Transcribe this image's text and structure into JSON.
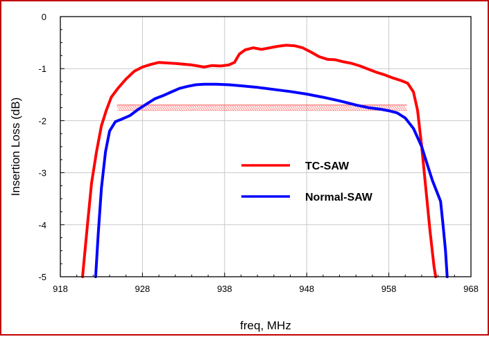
{
  "chart_data": {
    "type": "line",
    "title": "",
    "xlabel": "freq, MHz",
    "ylabel": "Insertion Loss (dB)",
    "xlim": [
      918,
      968
    ],
    "ylim": [
      -5,
      0
    ],
    "x_ticks": [
      "918",
      "928",
      "938",
      "948",
      "958",
      "968"
    ],
    "y_ticks": [
      "0",
      "-1",
      "-2",
      "-3",
      "-4",
      "-5"
    ],
    "grid": true,
    "legend_position": "center-right",
    "frame_color": "#c00000",
    "series": [
      {
        "name": "TC-SAW",
        "color": "#ff0000",
        "points": [
          [
            920.7,
            -5.0
          ],
          [
            921.3,
            -4.0
          ],
          [
            921.8,
            -3.2
          ],
          [
            922.4,
            -2.6
          ],
          [
            923.0,
            -2.1
          ],
          [
            923.6,
            -1.8
          ],
          [
            924.2,
            -1.55
          ],
          [
            925.0,
            -1.38
          ],
          [
            926.0,
            -1.2
          ],
          [
            927.0,
            -1.05
          ],
          [
            928.0,
            -0.97
          ],
          [
            929.0,
            -0.92
          ],
          [
            930.0,
            -0.88
          ],
          [
            932.0,
            -0.9
          ],
          [
            934.0,
            -0.93
          ],
          [
            935.5,
            -0.97
          ],
          [
            936.5,
            -0.94
          ],
          [
            937.5,
            -0.95
          ],
          [
            938.5,
            -0.93
          ],
          [
            939.2,
            -0.88
          ],
          [
            939.8,
            -0.72
          ],
          [
            940.5,
            -0.64
          ],
          [
            941.5,
            -0.6
          ],
          [
            942.5,
            -0.63
          ],
          [
            943.5,
            -0.6
          ],
          [
            944.5,
            -0.57
          ],
          [
            945.5,
            -0.55
          ],
          [
            946.5,
            -0.56
          ],
          [
            947.5,
            -0.6
          ],
          [
            948.5,
            -0.68
          ],
          [
            949.5,
            -0.77
          ],
          [
            950.5,
            -0.82
          ],
          [
            951.5,
            -0.83
          ],
          [
            952.5,
            -0.87
          ],
          [
            953.5,
            -0.9
          ],
          [
            954.5,
            -0.95
          ],
          [
            955.5,
            -1.01
          ],
          [
            956.5,
            -1.07
          ],
          [
            957.5,
            -1.12
          ],
          [
            958.5,
            -1.18
          ],
          [
            959.5,
            -1.23
          ],
          [
            960.3,
            -1.28
          ],
          [
            961.0,
            -1.45
          ],
          [
            961.5,
            -1.8
          ],
          [
            962.0,
            -2.5
          ],
          [
            962.5,
            -3.3
          ],
          [
            963.0,
            -4.1
          ],
          [
            963.5,
            -4.8
          ],
          [
            963.7,
            -5.0
          ]
        ]
      },
      {
        "name": "Normal-SAW",
        "color": "#0000ff",
        "points": [
          [
            922.3,
            -5.0
          ],
          [
            922.6,
            -4.2
          ],
          [
            923.0,
            -3.3
          ],
          [
            923.5,
            -2.6
          ],
          [
            924.0,
            -2.2
          ],
          [
            924.7,
            -2.02
          ],
          [
            925.5,
            -1.97
          ],
          [
            926.5,
            -1.9
          ],
          [
            927.5,
            -1.78
          ],
          [
            928.5,
            -1.68
          ],
          [
            929.5,
            -1.58
          ],
          [
            930.5,
            -1.52
          ],
          [
            931.5,
            -1.45
          ],
          [
            932.5,
            -1.38
          ],
          [
            933.5,
            -1.34
          ],
          [
            934.5,
            -1.31
          ],
          [
            935.5,
            -1.3
          ],
          [
            937.0,
            -1.3
          ],
          [
            938.5,
            -1.31
          ],
          [
            940.0,
            -1.33
          ],
          [
            942.0,
            -1.36
          ],
          [
            944.0,
            -1.4
          ],
          [
            946.0,
            -1.44
          ],
          [
            948.0,
            -1.49
          ],
          [
            950.0,
            -1.55
          ],
          [
            952.0,
            -1.62
          ],
          [
            954.0,
            -1.7
          ],
          [
            955.5,
            -1.75
          ],
          [
            957.0,
            -1.78
          ],
          [
            958.0,
            -1.81
          ],
          [
            959.0,
            -1.85
          ],
          [
            960.0,
            -1.95
          ],
          [
            961.0,
            -2.15
          ],
          [
            962.0,
            -2.5
          ],
          [
            962.7,
            -2.85
          ],
          [
            963.3,
            -3.15
          ],
          [
            963.8,
            -3.35
          ],
          [
            964.3,
            -3.55
          ],
          [
            964.6,
            -4.0
          ],
          [
            964.9,
            -4.5
          ],
          [
            965.1,
            -5.0
          ]
        ]
      }
    ],
    "spec_mask": {
      "x_start": 924.9,
      "x_end": 960.2,
      "y": -1.7,
      "color": "#ff4444"
    }
  }
}
